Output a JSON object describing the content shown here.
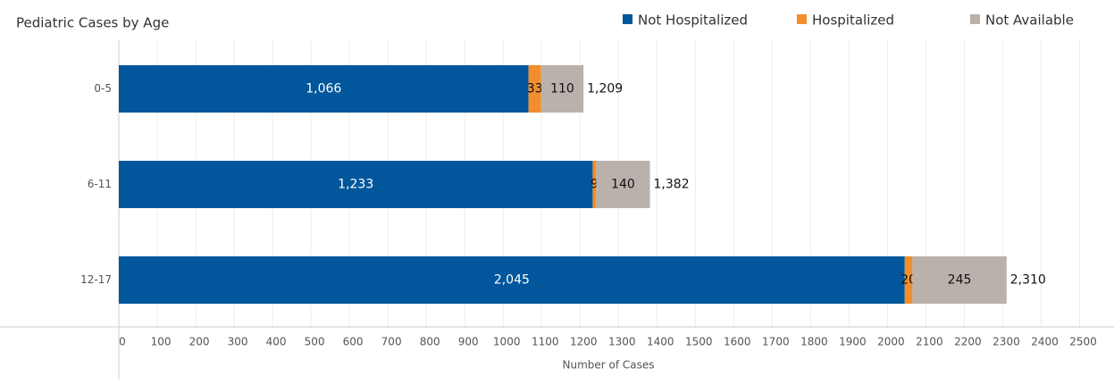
{
  "chart_data": {
    "type": "stacked_barh",
    "title": "Pediatric Cases by Age",
    "categories": [
      "0-5",
      "6-11",
      "12-17"
    ],
    "series": [
      {
        "name": "Not Hospitalized",
        "color": "#02569b",
        "values": [
          1066,
          1233,
          2045
        ],
        "value_labels": [
          "1,066",
          "1,233",
          "2,045"
        ],
        "label_color": "#ffffff"
      },
      {
        "name": "Hospitalized",
        "color": "#f28e2b",
        "values": [
          33,
          9,
          20
        ],
        "label_color": "#111111"
      },
      {
        "name": "Not Available",
        "color": "#bab0ac",
        "values": [
          110,
          140,
          245
        ],
        "label_color": "#111111"
      }
    ],
    "totals": {
      "values": [
        1209,
        1382,
        2310
      ],
      "value_labels": [
        "1,209",
        "1,382",
        "2,310"
      ]
    },
    "xlabel": "Number of Cases",
    "xlim": [
      0,
      2550
    ],
    "xticks": [
      0,
      100,
      200,
      300,
      400,
      500,
      600,
      700,
      800,
      900,
      1000,
      1100,
      1200,
      1300,
      1400,
      1500,
      1600,
      1700,
      1800,
      1900,
      2000,
      2100,
      2200,
      2300,
      2400,
      2500
    ],
    "grid": true
  }
}
